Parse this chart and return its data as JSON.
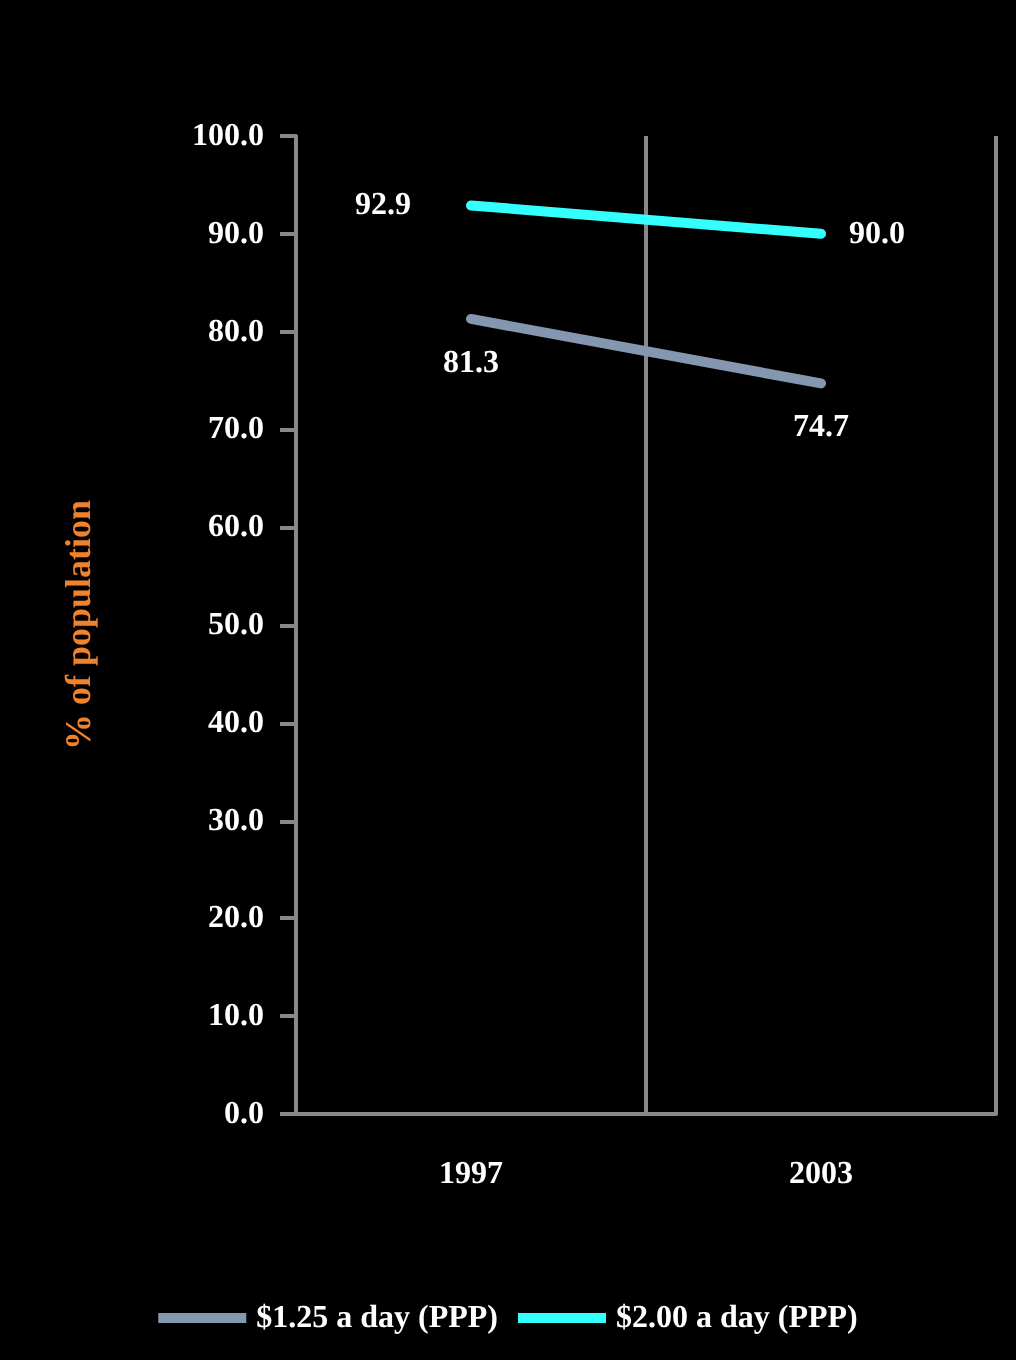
{
  "chart_data": {
    "type": "line",
    "ylabel": "% of population",
    "categories": [
      "1997",
      "2003"
    ],
    "series": [
      {
        "name": "$1.25 a day (PPP)",
        "color": "#8496b0",
        "values": [
          81.3,
          74.7
        ],
        "value_labels": [
          "81.3",
          "74.7"
        ]
      },
      {
        "name": "$2.00 a day (PPP)",
        "color": "#33ffff",
        "values": [
          92.9,
          90.0
        ],
        "value_labels": [
          "92.9",
          "90.0"
        ]
      }
    ],
    "ylim": [
      0,
      100
    ],
    "yticks": [
      {
        "value": 0,
        "label": "0.0"
      },
      {
        "value": 10,
        "label": "10.0"
      },
      {
        "value": 20,
        "label": "20.0"
      },
      {
        "value": 30,
        "label": "30.0"
      },
      {
        "value": 40,
        "label": "40.0"
      },
      {
        "value": 50,
        "label": "50.0"
      },
      {
        "value": 60,
        "label": "60.0"
      },
      {
        "value": 70,
        "label": "70.0"
      },
      {
        "value": 80,
        "label": "80.0"
      },
      {
        "value": 90,
        "label": "90.0"
      },
      {
        "value": 100,
        "label": "100.0"
      }
    ],
    "grid": "x",
    "legend": "bottom",
    "marker": "none"
  }
}
